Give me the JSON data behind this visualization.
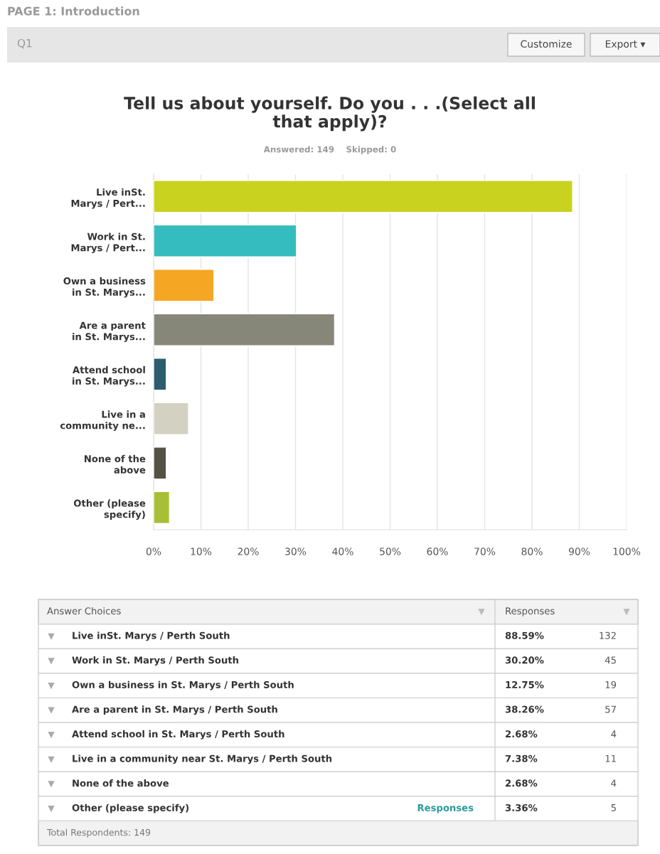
{
  "chart_data": {
    "type": "bar",
    "orientation": "horizontal",
    "title": "Tell us about yourself. Do you . . .(Select all\nthat apply)?",
    "subtitle": "Answered: 149    Skipped: 0",
    "categories": [
      "Live inSt.\nMarys / Pert...",
      "Work in St.\nMarys / Pert...",
      "Own a business\nin St. Marys...",
      "Are a parent\nin St. Marys...",
      "Attend school\nin St. Marys...",
      "Live in a\ncommunity ne...",
      "None of the\nabove",
      "Other (please\nspecify)"
    ],
    "values": [
      88.59,
      30.2,
      12.75,
      38.26,
      2.68,
      7.38,
      2.68,
      3.36
    ],
    "colors": [
      "#c9d21f",
      "#35bcbf",
      "#f5a623",
      "#878779",
      "#2c5d6e",
      "#d3d1c2",
      "#545243",
      "#a7bf36"
    ],
    "xlim": [
      0,
      100
    ],
    "xticks": [
      {
        "value": 0,
        "label": "0%"
      },
      {
        "value": 10,
        "label": "10%"
      },
      {
        "value": 20,
        "label": "20%"
      },
      {
        "value": 30,
        "label": "30%"
      },
      {
        "value": 40,
        "label": "40%"
      },
      {
        "value": 50,
        "label": "50%"
      },
      {
        "value": 60,
        "label": "60%"
      },
      {
        "value": 70,
        "label": "70%"
      },
      {
        "value": 80,
        "label": "80%"
      },
      {
        "value": 90,
        "label": "90%"
      },
      {
        "value": 100,
        "label": "100%"
      }
    ],
    "grid": "x",
    "annotations": [
      "PAGE 1: Introduction",
      "Q1",
      "Customize",
      "Export ▾",
      "Answer Choices",
      "Responses",
      "Live inSt. Marys / Perth South",
      "Work in St. Marys / Perth South",
      "Own a business in St. Marys / Perth South",
      "Are a parent in St. Marys / Perth South",
      "Attend school in St. Marys / Perth South",
      "Live in a community near St. Marys / Perth South",
      "None of the above",
      "Other (please specify)",
      "88.59%",
      "30.20%",
      "12.75%",
      "38.26%",
      "2.68%",
      "7.38%",
      "2.68%",
      "3.36%",
      "132",
      "45",
      "19",
      "57",
      "4",
      "11",
      "4",
      "5",
      "Responses",
      "Total Respondents: 149"
    ]
  }
}
